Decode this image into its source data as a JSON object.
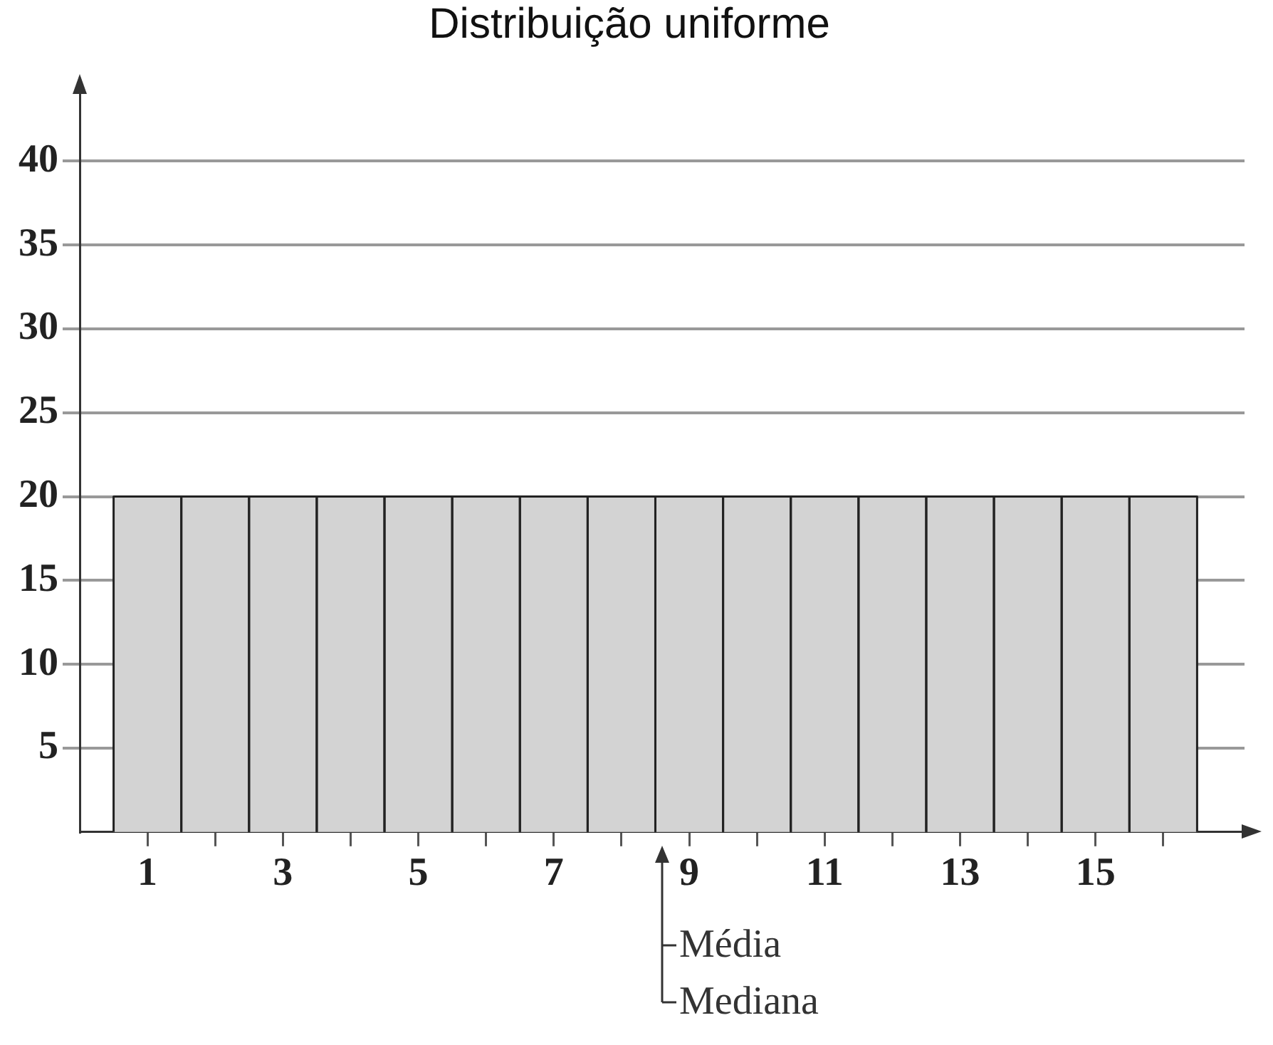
{
  "chart_data": {
    "type": "histogram",
    "title": "Distribuição uniforme",
    "bins": [
      0.5,
      1.5,
      2.5,
      3.5,
      4.5,
      5.5,
      6.5,
      7.5,
      8.5,
      9.5,
      10.5,
      11.5,
      12.5,
      13.5,
      14.5,
      15.5,
      16.5
    ],
    "values": [
      20,
      20,
      20,
      20,
      20,
      20,
      20,
      20,
      20,
      20,
      20,
      20,
      20,
      20,
      20,
      20
    ],
    "color": "#d3d3d3",
    "xlim": [
      0,
      17.2
    ],
    "xticks": [
      1,
      {
        "value": 2,
        "label": null
      },
      3,
      {
        "value": 4,
        "label": null
      },
      5,
      {
        "value": 6,
        "label": null
      },
      7,
      {
        "value": 8,
        "label": null
      },
      9,
      {
        "value": 10,
        "label": null
      },
      11,
      {
        "value": 12,
        "label": null
      },
      13,
      {
        "value": 14,
        "label": null
      },
      15,
      {
        "value": 16,
        "label": null
      }
    ],
    "ylim": [
      0,
      44
    ],
    "yticks": [
      5,
      10,
      15,
      20,
      25,
      30,
      35,
      40
    ],
    "grid": "y",
    "annotations": [
      "Média",
      "Mediana"
    ]
  }
}
